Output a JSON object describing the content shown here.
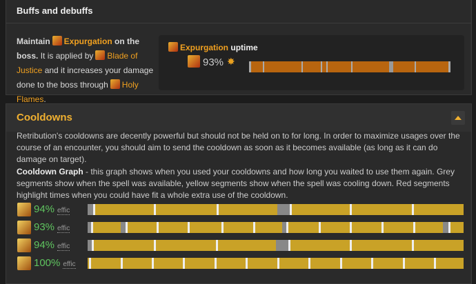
{
  "buffs": {
    "title": "Buffs and debuffs",
    "description": {
      "maintain": "Maintain",
      "spell": "Expurgation",
      "on_boss": "on the boss.",
      "applied_by": "It is applied by",
      "source": "Blade of Justice",
      "increases": "and it increases your damage done to the boss through",
      "talent": "Holy Flames",
      "end": "."
    },
    "uptime": {
      "spell": "Expurgation",
      "label": "uptime",
      "value": "93%"
    }
  },
  "cooldowns": {
    "title": "Cooldowns",
    "intro": "Retribution's cooldowns are decently powerful but should not be held on to for long. In order to maximize usages over the course of an encounter, you should aim to send the cooldown as soon as it becomes available (as long as it can do damage on target).",
    "graph_title": "Cooldown Graph",
    "graph_text": " - this graph shows when you used your cooldowns and how long you waited to use them again. Grey segments show when the spell was available, yellow segments show when the spell was cooling down. Red segments highlight times when you could have fit a whole extra use of the cooldown.",
    "rows": [
      {
        "value": "94%",
        "unit": "effic"
      },
      {
        "value": "93%",
        "unit": "effic"
      },
      {
        "value": "94%",
        "unit": "effic"
      },
      {
        "value": "100%",
        "unit": "effic"
      }
    ]
  }
}
